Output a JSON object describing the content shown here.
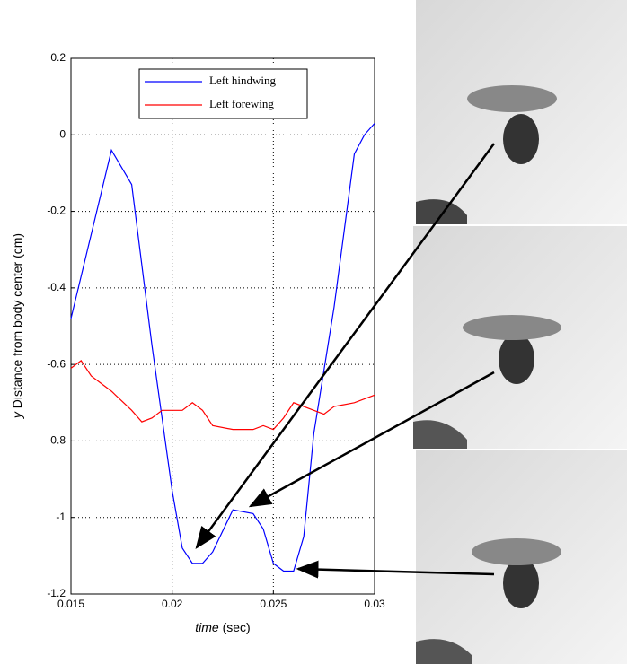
{
  "chart_data": {
    "type": "line",
    "xlabel_var": "time",
    "xlabel_unit": "(sec)",
    "ylabel_var": "y",
    "ylabel_text": "Distance from body center (cm)",
    "xlim": [
      0.015,
      0.03
    ],
    "xticks": [
      0.015,
      0.02,
      0.025,
      0.03
    ],
    "ylim": [
      -1.2,
      0.2
    ],
    "yticks": [
      0.2,
      0,
      -0.2,
      -0.4,
      -0.6,
      -0.8,
      -1,
      -1.2
    ],
    "grid": true,
    "legend": "top",
    "series": [
      {
        "name": "Left hindwing",
        "color": "#0000ff",
        "x": [
          0.015,
          0.017,
          0.018,
          0.019,
          0.02,
          0.0205,
          0.021,
          0.0215,
          0.022,
          0.023,
          0.024,
          0.0245,
          0.025,
          0.0255,
          0.026,
          0.0265,
          0.027,
          0.028,
          0.029,
          0.0295,
          0.03
        ],
        "values": [
          -0.48,
          -0.04,
          -0.13,
          -0.55,
          -0.93,
          -1.08,
          -1.12,
          -1.12,
          -1.09,
          -0.98,
          -0.99,
          -1.03,
          -1.12,
          -1.14,
          -1.14,
          -1.05,
          -0.78,
          -0.45,
          -0.05,
          0.0,
          0.03
        ]
      },
      {
        "name": "Left forewing",
        "color": "#ff0000",
        "x": [
          0.015,
          0.0155,
          0.016,
          0.017,
          0.018,
          0.0185,
          0.019,
          0.0195,
          0.02,
          0.0205,
          0.021,
          0.0215,
          0.022,
          0.023,
          0.024,
          0.0245,
          0.025,
          0.0255,
          0.026,
          0.027,
          0.0275,
          0.028,
          0.029,
          0.03
        ],
        "values": [
          -0.61,
          -0.59,
          -0.63,
          -0.67,
          -0.72,
          -0.75,
          -0.74,
          -0.72,
          -0.72,
          -0.72,
          -0.7,
          -0.72,
          -0.76,
          -0.77,
          -0.77,
          -0.76,
          -0.77,
          -0.74,
          -0.7,
          -0.72,
          -0.73,
          -0.71,
          -0.7,
          -0.68
        ]
      }
    ]
  }
}
